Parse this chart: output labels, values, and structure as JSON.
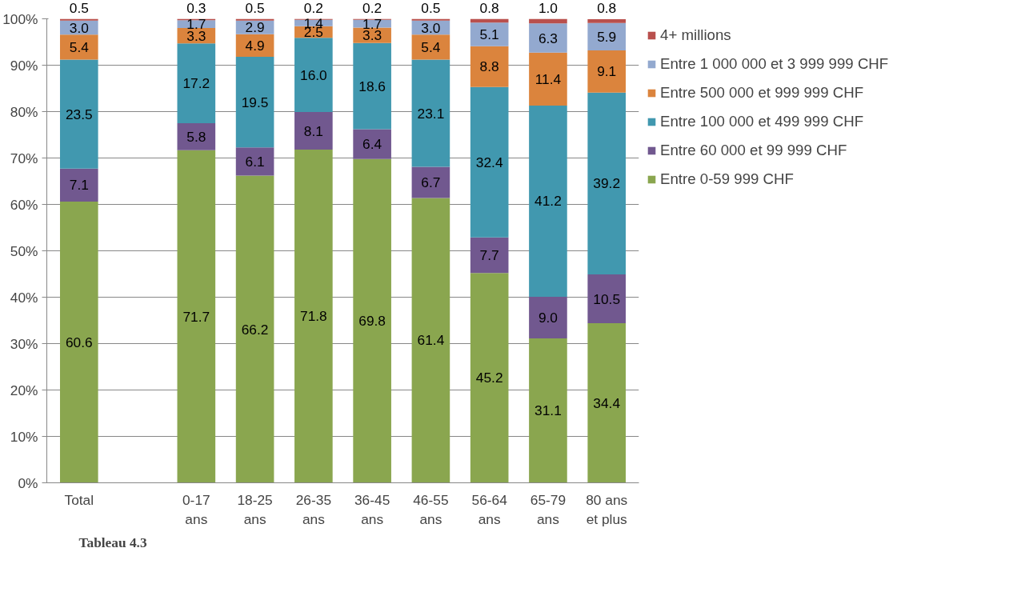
{
  "chart_data": {
    "type": "bar",
    "stacked": true,
    "grid": "y",
    "legend": "right",
    "data_labels": true,
    "categories": [
      "Total",
      null,
      "0-17 ans",
      "18-25 ans",
      "26-35 ans",
      "36-45 ans",
      "46-55 ans",
      "56-64 ans",
      "65-79 ans",
      "80 ans et plus"
    ],
    "ylim": [
      0,
      100
    ],
    "yticks": [
      {
        "value": 0,
        "label": "0%"
      },
      {
        "value": 10,
        "label": "10%"
      },
      {
        "value": 20,
        "label": "20%"
      },
      {
        "value": 30,
        "label": "30%"
      },
      {
        "value": 40,
        "label": "40%"
      },
      {
        "value": 50,
        "label": "50%"
      },
      {
        "value": 60,
        "label": "60%"
      },
      {
        "value": 70,
        "label": "70%"
      },
      {
        "value": 80,
        "label": "80%"
      },
      {
        "value": 90,
        "label": "90%"
      },
      {
        "value": 100,
        "label": "100%"
      }
    ],
    "series": [
      {
        "name": "Entre 0-59 999 CHF",
        "color": "#8aa64f",
        "values": [
          60.6,
          null,
          71.7,
          66.2,
          71.8,
          69.8,
          61.4,
          45.2,
          31.1,
          34.4
        ],
        "value_labels": [
          "60.6",
          null,
          "71.7",
          "66.2",
          "71.8",
          "69.8",
          "61.4",
          "45.2",
          "31.1",
          "34.4"
        ]
      },
      {
        "name": "Entre 60 000 et 99 999 CHF",
        "color": "#71588f",
        "values": [
          7.1,
          null,
          5.8,
          6.1,
          8.1,
          6.4,
          6.7,
          7.7,
          9.0,
          10.5
        ],
        "value_labels": [
          "7.1",
          null,
          "5.8",
          "6.1",
          "8.1",
          "6.4",
          "6.7",
          "7.7",
          "9.0",
          "10.5"
        ]
      },
      {
        "name": "Entre 100 000 et 499 999 CHF",
        "color": "#4198af",
        "values": [
          23.5,
          null,
          17.2,
          19.5,
          16.0,
          18.6,
          23.1,
          32.4,
          41.2,
          39.2
        ],
        "value_labels": [
          "23.5",
          null,
          "17.2",
          "19.5",
          "16.0",
          "18.6",
          "23.1",
          "32.4",
          "41.2",
          "39.2"
        ]
      },
      {
        "name": "Entre 500 000 et 999 999 CHF",
        "color": "#db843d",
        "values": [
          5.4,
          null,
          3.3,
          4.9,
          2.5,
          3.3,
          5.4,
          8.8,
          11.4,
          9.1
        ],
        "value_labels": [
          "5.4",
          null,
          "3.3",
          "4.9",
          "2.5",
          "3.3",
          "5.4",
          "8.8",
          "11.4",
          "9.1"
        ]
      },
      {
        "name": "Entre 1 000 000 et 3 999 999 CHF",
        "color": "#93a9cf",
        "values": [
          3.0,
          null,
          1.7,
          2.9,
          1.4,
          1.7,
          3.0,
          5.1,
          6.3,
          5.9
        ],
        "value_labels": [
          "3.0",
          null,
          "1.7",
          "2.9",
          "1.4",
          "1.7",
          "3.0",
          "5.1",
          "6.3",
          "5.9"
        ]
      },
      {
        "name": "4+ millions",
        "color": "#b9504d",
        "values": [
          0.5,
          null,
          0.3,
          0.5,
          0.2,
          0.2,
          0.5,
          0.8,
          1.0,
          0.8
        ],
        "value_labels": [
          "0.5",
          null,
          "0.3",
          "0.5",
          "0.2",
          "0.2",
          "0.5",
          "0.8",
          "1.0",
          "0.8"
        ]
      }
    ],
    "annotations": [
      "Tableau 4.3"
    ]
  }
}
